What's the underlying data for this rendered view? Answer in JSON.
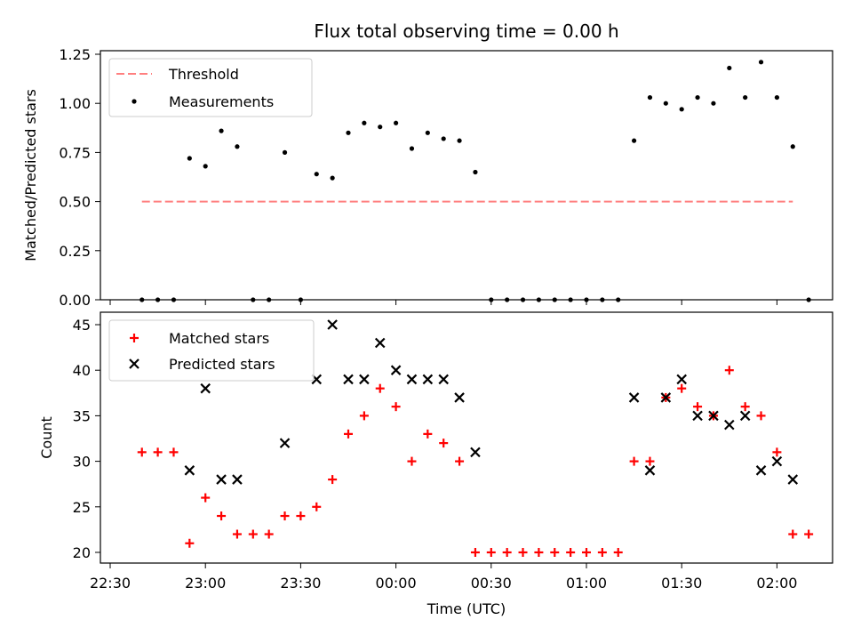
{
  "chart_data": [
    {
      "type": "scatter",
      "title": "Flux total observing time = 0.00 h",
      "xlabel": "",
      "ylabel": "Matched/Predicted stars",
      "ylim": [
        0,
        1.25
      ],
      "yticks": [
        "0.00",
        "0.25",
        "0.50",
        "0.75",
        "1.00",
        "1.25"
      ],
      "legend_placement": "top-left",
      "threshold": {
        "name": "Threshold",
        "value": 0.5,
        "color": "#ff7f7f",
        "style": "dashed",
        "x_start": "22:40",
        "x_end": "02:05"
      },
      "series": [
        {
          "name": "Measurements",
          "color": "#000000",
          "marker": "dot",
          "points": [
            [
              "22:40",
              0.0
            ],
            [
              "22:45",
              0.0
            ],
            [
              "22:50",
              0.0
            ],
            [
              "22:55",
              0.72
            ],
            [
              "23:00",
              0.68
            ],
            [
              "23:05",
              0.86
            ],
            [
              "23:10",
              0.78
            ],
            [
              "23:15",
              0.0
            ],
            [
              "23:20",
              0.0
            ],
            [
              "23:25",
              0.75
            ],
            [
              "23:30",
              0.0
            ],
            [
              "23:35",
              0.64
            ],
            [
              "23:40",
              0.62
            ],
            [
              "23:45",
              0.85
            ],
            [
              "23:50",
              0.9
            ],
            [
              "23:55",
              0.88
            ],
            [
              "00:00",
              0.9
            ],
            [
              "00:05",
              0.77
            ],
            [
              "00:10",
              0.85
            ],
            [
              "00:15",
              0.82
            ],
            [
              "00:20",
              0.81
            ],
            [
              "00:25",
              0.65
            ],
            [
              "00:30",
              0.0
            ],
            [
              "00:35",
              0.0
            ],
            [
              "00:40",
              0.0
            ],
            [
              "00:45",
              0.0
            ],
            [
              "00:50",
              0.0
            ],
            [
              "00:55",
              0.0
            ],
            [
              "01:00",
              0.0
            ],
            [
              "01:05",
              0.0
            ],
            [
              "01:10",
              0.0
            ],
            [
              "01:15",
              0.81
            ],
            [
              "01:20",
              1.03
            ],
            [
              "01:25",
              1.0
            ],
            [
              "01:30",
              0.97
            ],
            [
              "01:35",
              1.03
            ],
            [
              "01:40",
              1.0
            ],
            [
              "01:45",
              1.18
            ],
            [
              "01:50",
              1.03
            ],
            [
              "01:55",
              1.21
            ],
            [
              "02:00",
              1.03
            ],
            [
              "02:05",
              0.78
            ],
            [
              "02:10",
              0.0
            ]
          ]
        }
      ]
    },
    {
      "type": "scatter",
      "title": "",
      "xlabel": "Time (UTC)",
      "ylabel": "Count",
      "ylim": [
        20,
        45
      ],
      "yticks": [
        "20",
        "25",
        "30",
        "35",
        "40",
        "45"
      ],
      "xticks": [
        "22:30",
        "23:00",
        "23:30",
        "00:00",
        "00:30",
        "01:00",
        "01:30",
        "02:00"
      ],
      "legend_placement": "top-left",
      "series": [
        {
          "name": "Matched stars",
          "color": "#ff0000",
          "marker": "plus",
          "points": [
            [
              "22:40",
              31
            ],
            [
              "22:45",
              31
            ],
            [
              "22:50",
              31
            ],
            [
              "22:55",
              21
            ],
            [
              "23:00",
              26
            ],
            [
              "23:05",
              24
            ],
            [
              "23:10",
              22
            ],
            [
              "23:15",
              22
            ],
            [
              "23:20",
              22
            ],
            [
              "23:25",
              24
            ],
            [
              "23:30",
              24
            ],
            [
              "23:35",
              25
            ],
            [
              "23:40",
              28
            ],
            [
              "23:45",
              33
            ],
            [
              "23:50",
              35
            ],
            [
              "23:55",
              38
            ],
            [
              "00:00",
              36
            ],
            [
              "00:05",
              30
            ],
            [
              "00:10",
              33
            ],
            [
              "00:15",
              32
            ],
            [
              "00:20",
              30
            ],
            [
              "00:25",
              20
            ],
            [
              "00:30",
              20
            ],
            [
              "00:35",
              20
            ],
            [
              "00:40",
              20
            ],
            [
              "00:45",
              20
            ],
            [
              "00:50",
              20
            ],
            [
              "00:55",
              20
            ],
            [
              "01:00",
              20
            ],
            [
              "01:05",
              20
            ],
            [
              "01:10",
              20
            ],
            [
              "01:15",
              30
            ],
            [
              "01:20",
              30
            ],
            [
              "01:25",
              37
            ],
            [
              "01:30",
              38
            ],
            [
              "01:35",
              36
            ],
            [
              "01:40",
              35
            ],
            [
              "01:45",
              40
            ],
            [
              "01:50",
              36
            ],
            [
              "01:55",
              35
            ],
            [
              "02:00",
              31
            ],
            [
              "02:05",
              22
            ],
            [
              "02:10",
              22
            ]
          ]
        },
        {
          "name": "Predicted stars",
          "color": "#000000",
          "marker": "x",
          "points": [
            [
              "22:55",
              29
            ],
            [
              "23:00",
              38
            ],
            [
              "23:05",
              28
            ],
            [
              "23:10",
              28
            ],
            [
              "23:25",
              32
            ],
            [
              "23:35",
              39
            ],
            [
              "23:40",
              45
            ],
            [
              "23:45",
              39
            ],
            [
              "23:50",
              39
            ],
            [
              "23:55",
              43
            ],
            [
              "00:00",
              40
            ],
            [
              "00:05",
              39
            ],
            [
              "00:10",
              39
            ],
            [
              "00:15",
              39
            ],
            [
              "00:20",
              37
            ],
            [
              "00:25",
              31
            ],
            [
              "01:15",
              37
            ],
            [
              "01:20",
              29
            ],
            [
              "01:25",
              37
            ],
            [
              "01:30",
              39
            ],
            [
              "01:35",
              35
            ],
            [
              "01:40",
              35
            ],
            [
              "01:45",
              34
            ],
            [
              "01:50",
              35
            ],
            [
              "01:55",
              29
            ],
            [
              "02:00",
              30
            ],
            [
              "02:05",
              28
            ]
          ]
        }
      ]
    }
  ]
}
